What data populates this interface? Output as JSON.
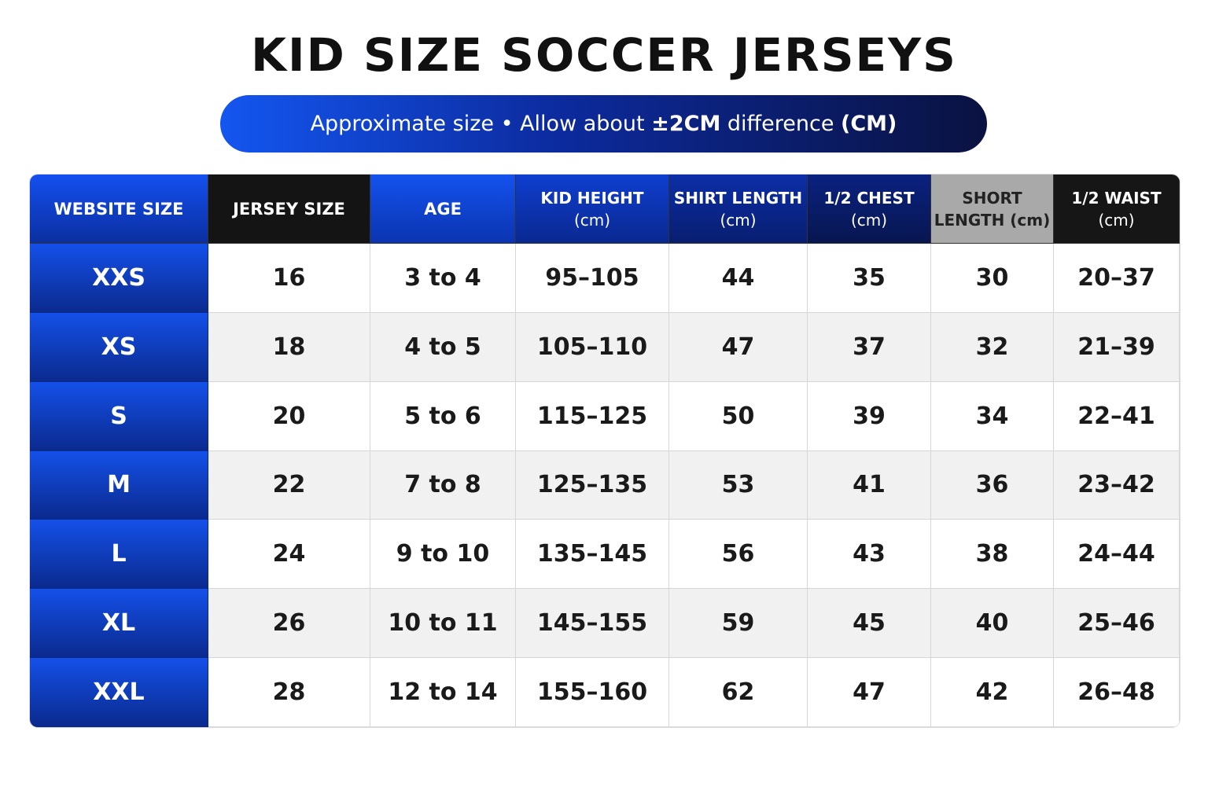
{
  "title": "KID SIZE SOCCER JERSEYS",
  "subtitle": [
    {
      "text": "Approximate size • Allow about ",
      "bold": false
    },
    {
      "text": "±2CM",
      "bold": true
    },
    {
      "text": " difference ",
      "bold": false
    },
    {
      "text": "(CM)",
      "bold": true
    }
  ],
  "table": {
    "headers": [
      [
        "WEBSITE SIZE"
      ],
      [
        "JERSEY SIZE"
      ],
      [
        "AGE"
      ],
      [
        "KID HEIGHT",
        "(cm)"
      ],
      [
        "SHIRT LENGTH",
        "(cm)"
      ],
      [
        "1/2 CHEST",
        "(cm)"
      ],
      [
        "SHORT",
        "LENGTH (cm)"
      ],
      [
        "1/2 WAIST",
        "(cm)"
      ]
    ],
    "rows": [
      [
        "XXS",
        "16",
        "3 to 4",
        "95–105",
        "44",
        "35",
        "30",
        "20–37"
      ],
      [
        "XS",
        "18",
        "4 to 5",
        "105–110",
        "47",
        "37",
        "32",
        "21–39"
      ],
      [
        "S",
        "20",
        "5 to 6",
        "115–125",
        "50",
        "39",
        "34",
        "22–41"
      ],
      [
        "M",
        "22",
        "7 to 8",
        "125–135",
        "53",
        "41",
        "36",
        "23–42"
      ],
      [
        "L",
        "24",
        "9 to 10",
        "135–145",
        "56",
        "43",
        "38",
        "24–44"
      ],
      [
        "XL",
        "26",
        "10 to 11",
        "145–155",
        "59",
        "45",
        "40",
        "25–46"
      ],
      [
        "XXL",
        "28",
        "12 to 14",
        "155–160",
        "62",
        "47",
        "42",
        "26–48"
      ]
    ]
  }
}
